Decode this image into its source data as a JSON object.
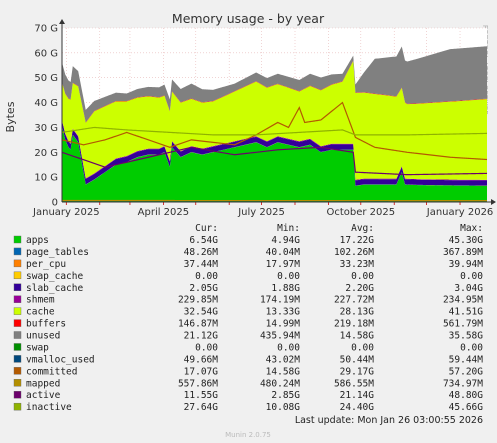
{
  "chart_data": {
    "type": "area",
    "title": "Memory usage - by year",
    "ylabel": "Bytes",
    "xlabel": "",
    "y_unit": "G",
    "ylim": [
      0,
      70
    ],
    "y_ticks": [
      0,
      10,
      20,
      30,
      40,
      50,
      60,
      70
    ],
    "y_tick_labels": [
      "0",
      "10 G",
      "20 G",
      "30 G",
      "40 G",
      "50 G",
      "60 G",
      "70 G"
    ],
    "x_tick_labels": [
      "January 2025",
      "April 2025",
      "July 2025",
      "October 2025",
      "January 2026"
    ],
    "x_range": [
      "2024-12-28",
      "2026-01-26"
    ],
    "grid": true,
    "series": [
      {
        "name": "apps",
        "color": "#00cc00",
        "values": [
          [
            0,
            30.5
          ],
          [
            3,
            25
          ],
          [
            6,
            22
          ],
          [
            8,
            21
          ],
          [
            10,
            27
          ],
          [
            15,
            24
          ],
          [
            22,
            7
          ],
          [
            30,
            9
          ],
          [
            40,
            12
          ],
          [
            50,
            15
          ],
          [
            60,
            16
          ],
          [
            70,
            18
          ],
          [
            80,
            19
          ],
          [
            90,
            19
          ],
          [
            95,
            20
          ],
          [
            100,
            14
          ],
          [
            102,
            22
          ],
          [
            110,
            18
          ],
          [
            120,
            20
          ],
          [
            130,
            19
          ],
          [
            140,
            20
          ],
          [
            150,
            21
          ],
          [
            160,
            22
          ],
          [
            170,
            23
          ],
          [
            180,
            24
          ],
          [
            190,
            22
          ],
          [
            200,
            24
          ],
          [
            210,
            23
          ],
          [
            220,
            22
          ],
          [
            230,
            23
          ],
          [
            240,
            20
          ],
          [
            250,
            21
          ],
          [
            260,
            21
          ],
          [
            270,
            21
          ],
          [
            272,
            6.5
          ],
          [
            280,
            7
          ],
          [
            300,
            7
          ],
          [
            310,
            7
          ],
          [
            315,
            12
          ],
          [
            318,
            7
          ],
          [
            330,
            6.8
          ],
          [
            350,
            6.7
          ],
          [
            365,
            6.6
          ],
          [
            394,
            6.54
          ]
        ]
      },
      {
        "name": "page_tables",
        "color": "#0066b3",
        "values": [
          [
            0,
            0.05
          ],
          [
            394,
            0.05
          ]
        ]
      },
      {
        "name": "per_cpu",
        "color": "#ff8000",
        "values": [
          [
            0,
            0.04
          ],
          [
            394,
            0.04
          ]
        ]
      },
      {
        "name": "swap_cache",
        "color": "#ffcc00",
        "values": [
          [
            0,
            0
          ],
          [
            394,
            0
          ]
        ]
      },
      {
        "name": "slab_cache",
        "color": "#330099",
        "values": [
          [
            0,
            2.2
          ],
          [
            394,
            2.05
          ]
        ]
      },
      {
        "name": "shmem",
        "color": "#990099",
        "values": [
          [
            0,
            0.23
          ],
          [
            394,
            0.23
          ]
        ]
      },
      {
        "name": "cache",
        "color": "#ccff00",
        "values": [
          [
            0,
            15
          ],
          [
            30,
            25
          ],
          [
            60,
            22
          ],
          [
            100,
            20
          ],
          [
            140,
            18
          ],
          [
            180,
            22
          ],
          [
            220,
            20
          ],
          [
            260,
            25
          ],
          [
            272,
            35
          ],
          [
            310,
            33
          ],
          [
            320,
            30
          ],
          [
            394,
            32.5
          ]
        ]
      },
      {
        "name": "buffers",
        "color": "#ff0000",
        "values": [
          [
            0,
            0.15
          ],
          [
            394,
            0.15
          ]
        ]
      },
      {
        "name": "unused",
        "color": "#808080",
        "values": [
          [
            0,
            8
          ],
          [
            30,
            4
          ],
          [
            60,
            3
          ],
          [
            90,
            4
          ],
          [
            120,
            6
          ],
          [
            160,
            3
          ],
          [
            200,
            4
          ],
          [
            240,
            5
          ],
          [
            270,
            2
          ],
          [
            290,
            14
          ],
          [
            330,
            18
          ],
          [
            360,
            21
          ],
          [
            394,
            21.1
          ]
        ]
      },
      {
        "name": "swap",
        "color": "#008f00",
        "values": [
          [
            0,
            0
          ],
          [
            394,
            0
          ]
        ]
      },
      {
        "name": "vmalloc_used",
        "color": "#00487d",
        "values": [
          [
            0,
            0.05
          ],
          [
            394,
            0.05
          ]
        ]
      },
      {
        "name": "committed",
        "color": "#b35a00",
        "values": [
          [
            0,
            25
          ],
          [
            20,
            23
          ],
          [
            40,
            25
          ],
          [
            60,
            28
          ],
          [
            80,
            25
          ],
          [
            100,
            22
          ],
          [
            120,
            25
          ],
          [
            140,
            24
          ],
          [
            160,
            23
          ],
          [
            180,
            27
          ],
          [
            200,
            32
          ],
          [
            210,
            30
          ],
          [
            220,
            38
          ],
          [
            225,
            32
          ],
          [
            240,
            33
          ],
          [
            260,
            40
          ],
          [
            272,
            26
          ],
          [
            290,
            22
          ],
          [
            320,
            20
          ],
          [
            360,
            18
          ],
          [
            394,
            17.1
          ]
        ]
      },
      {
        "name": "mapped",
        "color": "#b38f00",
        "values": [
          [
            0,
            0.6
          ],
          [
            394,
            0.56
          ]
        ]
      },
      {
        "name": "active",
        "color": "#6b006b",
        "values": [
          [
            0,
            20
          ],
          [
            40,
            14
          ],
          [
            80,
            18
          ],
          [
            120,
            22
          ],
          [
            160,
            19
          ],
          [
            200,
            21
          ],
          [
            240,
            22
          ],
          [
            270,
            20
          ],
          [
            272,
            12
          ],
          [
            320,
            11
          ],
          [
            394,
            11.5
          ]
        ]
      },
      {
        "name": "inactive",
        "color": "#8fb300",
        "values": [
          [
            0,
            28
          ],
          [
            30,
            30
          ],
          [
            60,
            29
          ],
          [
            100,
            28
          ],
          [
            140,
            27
          ],
          [
            180,
            27
          ],
          [
            220,
            28
          ],
          [
            260,
            29
          ],
          [
            272,
            27
          ],
          [
            320,
            27
          ],
          [
            394,
            27.6
          ]
        ]
      }
    ],
    "table": {
      "headers": [
        "Cur:",
        "Min:",
        "Avg:",
        "Max:"
      ],
      "rows": [
        {
          "name": "apps",
          "color": "#00cc00",
          "cur": "6.54G",
          "min": "4.94G",
          "avg": "17.22G",
          "max": "45.30G"
        },
        {
          "name": "page_tables",
          "color": "#0066b3",
          "cur": "48.26M",
          "min": "40.04M",
          "avg": "102.26M",
          "max": "367.89M"
        },
        {
          "name": "per_cpu",
          "color": "#ff8000",
          "cur": "37.44M",
          "min": "17.97M",
          "avg": "33.23M",
          "max": "39.94M"
        },
        {
          "name": "swap_cache",
          "color": "#ffcc00",
          "cur": "0.00",
          "min": "0.00",
          "avg": "0.00",
          "max": "0.00"
        },
        {
          "name": "slab_cache",
          "color": "#330099",
          "cur": "2.05G",
          "min": "1.88G",
          "avg": "2.20G",
          "max": "3.04G"
        },
        {
          "name": "shmem",
          "color": "#990099",
          "cur": "229.85M",
          "min": "174.19M",
          "avg": "227.72M",
          "max": "234.95M"
        },
        {
          "name": "cache",
          "color": "#ccff00",
          "cur": "32.54G",
          "min": "13.33G",
          "avg": "28.13G",
          "max": "41.51G"
        },
        {
          "name": "buffers",
          "color": "#ff0000",
          "cur": "146.87M",
          "min": "14.99M",
          "avg": "219.18M",
          "max": "561.79M"
        },
        {
          "name": "unused",
          "color": "#808080",
          "cur": "21.12G",
          "min": "435.94M",
          "avg": "14.58G",
          "max": "35.58G"
        },
        {
          "name": "swap",
          "color": "#008f00",
          "cur": "0.00",
          "min": "0.00",
          "avg": "0.00",
          "max": "0.00"
        },
        {
          "name": "vmalloc_used",
          "color": "#00487d",
          "cur": "49.66M",
          "min": "43.02M",
          "avg": "50.44M",
          "max": "59.44M"
        },
        {
          "name": "committed",
          "color": "#b35a00",
          "cur": "17.07G",
          "min": "14.58G",
          "avg": "29.17G",
          "max": "57.20G"
        },
        {
          "name": "mapped",
          "color": "#b38f00",
          "cur": "557.86M",
          "min": "480.24M",
          "avg": "586.55M",
          "max": "734.97M"
        },
        {
          "name": "active",
          "color": "#6b006b",
          "cur": "11.55G",
          "min": "2.85G",
          "avg": "21.14G",
          "max": "48.80G"
        },
        {
          "name": "inactive",
          "color": "#8fb300",
          "cur": "27.64G",
          "min": "10.08G",
          "avg": "24.40G",
          "max": "45.66G"
        }
      ]
    },
    "last_update": "Last update:  Mon Jan 26 03:00:55 2026",
    "watermark": "RRDTOOL / TOBI OETIKER",
    "footer": "Munin 2.0.75"
  }
}
